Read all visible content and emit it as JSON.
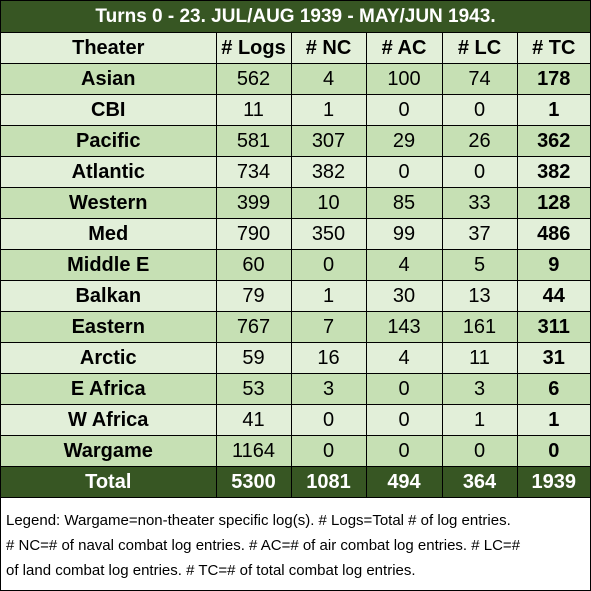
{
  "title": "Turns 0 - 23.  JUL/AUG 1939 - MAY/JUN 1943.",
  "headers": [
    "Theater",
    "# Logs",
    "# NC",
    "# AC",
    "# LC",
    "# TC"
  ],
  "rows": [
    [
      "Asian",
      "562",
      "4",
      "100",
      "74",
      "178"
    ],
    [
      "CBI",
      "11",
      "1",
      "0",
      "0",
      "1"
    ],
    [
      "Pacific",
      "581",
      "307",
      "29",
      "26",
      "362"
    ],
    [
      "Atlantic",
      "734",
      "382",
      "0",
      "0",
      "382"
    ],
    [
      "Western",
      "399",
      "10",
      "85",
      "33",
      "128"
    ],
    [
      "Med",
      "790",
      "350",
      "99",
      "37",
      "486"
    ],
    [
      "Middle E",
      "60",
      "0",
      "4",
      "5",
      "9"
    ],
    [
      "Balkan",
      "79",
      "1",
      "30",
      "13",
      "44"
    ],
    [
      "Eastern",
      "767",
      "7",
      "143",
      "161",
      "311"
    ],
    [
      "Arctic",
      "59",
      "16",
      "4",
      "11",
      "31"
    ],
    [
      "E Africa",
      "53",
      "3",
      "0",
      "3",
      "6"
    ],
    [
      "W Africa",
      "41",
      "0",
      "0",
      "1",
      "1"
    ],
    [
      "Wargame",
      "1164",
      "0",
      "0",
      "0",
      "0"
    ]
  ],
  "total": [
    "Total",
    "5300",
    "1081",
    "494",
    "364",
    "1939"
  ],
  "legend": {
    "line1": "Legend:  Wargame=non-theater specific log(s).  # Logs=Total # of log entries.",
    "line2": "# NC=# of naval combat log entries.  # AC=# of air combat log entries.  # LC=#",
    "line3": "of land combat log entries.  # TC=# of total combat log entries."
  },
  "colors": {
    "dark_green": "#375623",
    "light_green": "#e2efd9",
    "mid_green": "#c6e0b4"
  }
}
